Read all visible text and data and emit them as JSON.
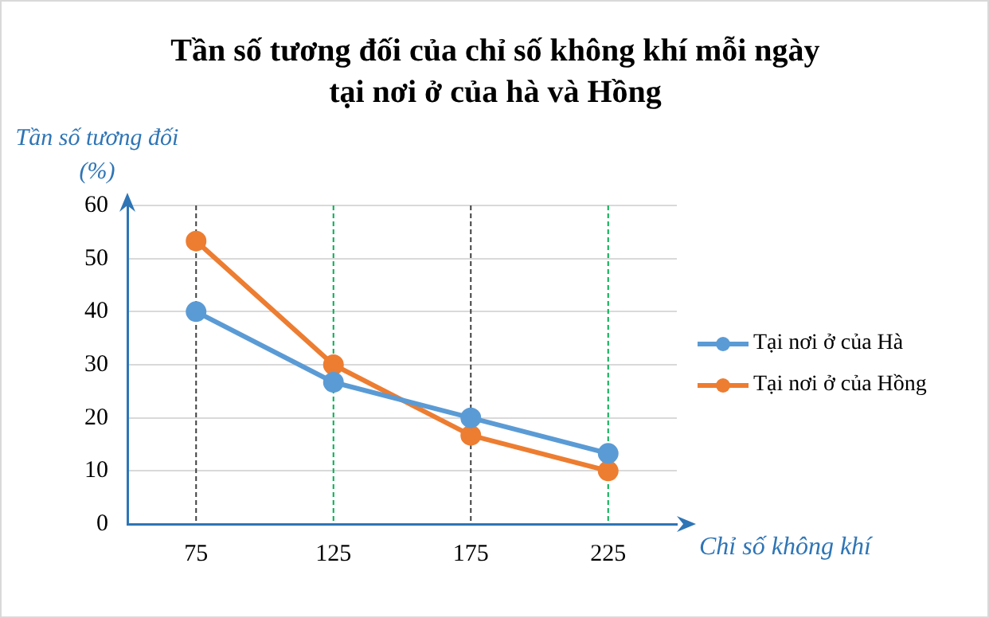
{
  "chart_data": {
    "type": "line",
    "title": "Tần số tương đối của chỉ số không khí mỗi ngày tại nơi ở của hà và Hồng",
    "xlabel": "Chỉ số không khí",
    "ylabel": "Tần số tương đối (%)",
    "categories": [
      "75",
      "125",
      "175",
      "225"
    ],
    "series": [
      {
        "name": "Tại nơi ở của Hà",
        "color": "#5b9bd5",
        "values": [
          40,
          26.7,
          20,
          13.3
        ]
      },
      {
        "name": "Tại nơi ở của Hồng",
        "color": "#ed7d31",
        "values": [
          53.3,
          30,
          16.7,
          10
        ]
      }
    ],
    "ref_lines": [
      {
        "axis": "x",
        "value": "75",
        "color": "#404040",
        "line_style": "dashed"
      },
      {
        "axis": "x",
        "value": "125",
        "color": "#00b050",
        "line_style": "dashed"
      },
      {
        "axis": "x",
        "value": "175",
        "color": "#404040",
        "line_style": "dashed"
      },
      {
        "axis": "x",
        "value": "225",
        "color": "#00b050",
        "line_style": "dashed"
      }
    ],
    "ylim": [
      0,
      60
    ],
    "yticks": [
      0,
      10,
      20,
      30,
      40,
      50,
      60
    ],
    "grid": "y",
    "legend": "right",
    "marker": "circle",
    "line_style": "solid"
  }
}
